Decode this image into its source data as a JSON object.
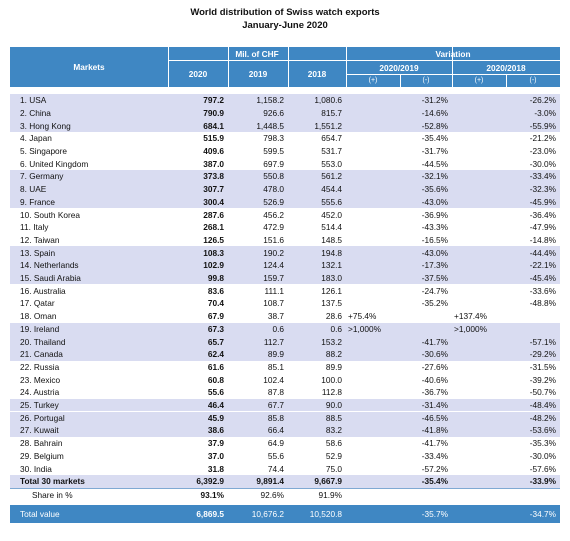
{
  "title_lines": [
    "World distribution of Swiss watch exports",
    "January-June 2020"
  ],
  "header": {
    "markets": "Markets",
    "group_values": "Mil. of CHF",
    "years": [
      "2020",
      "2019",
      "2018"
    ],
    "group_variation": "Variation",
    "periods": [
      "2020/2019",
      "2020/2018"
    ],
    "signs": [
      "(+)",
      "(-)",
      "(+)",
      "(-)"
    ]
  },
  "rows": [
    [
      "1. USA",
      "797.2",
      "1,158.2",
      "1,080.6",
      null,
      "-31.2%",
      null,
      "-26.2%"
    ],
    [
      "2. China",
      "790.9",
      "926.6",
      "815.7",
      null,
      "-14.6%",
      null,
      "-3.0%"
    ],
    [
      "3. Hong Kong",
      "684.1",
      "1,448.5",
      "1,551.2",
      null,
      "-52.8%",
      null,
      "-55.9%"
    ],
    [
      "4. Japan",
      "515.9",
      "798.3",
      "654.7",
      null,
      "-35.4%",
      null,
      "-21.2%"
    ],
    [
      "5. Singapore",
      "409.6",
      "599.5",
      "531.7",
      null,
      "-31.7%",
      null,
      "-23.0%"
    ],
    [
      "6. United Kingdom",
      "387.0",
      "697.9",
      "553.0",
      null,
      "-44.5%",
      null,
      "-30.0%"
    ],
    [
      "7. Germany",
      "373.8",
      "550.8",
      "561.2",
      null,
      "-32.1%",
      null,
      "-33.4%"
    ],
    [
      "8. UAE",
      "307.7",
      "478.0",
      "454.4",
      null,
      "-35.6%",
      null,
      "-32.3%"
    ],
    [
      "9. France",
      "300.4",
      "526.9",
      "555.6",
      null,
      "-43.0%",
      null,
      "-45.9%"
    ],
    [
      "10. South Korea",
      "287.6",
      "456.2",
      "452.0",
      null,
      "-36.9%",
      null,
      "-36.4%"
    ],
    [
      "11. Italy",
      "268.1",
      "472.9",
      "514.4",
      null,
      "-43.3%",
      null,
      "-47.9%"
    ],
    [
      "12. Taiwan",
      "126.5",
      "151.6",
      "148.5",
      null,
      "-16.5%",
      null,
      "-14.8%"
    ],
    [
      "13. Spain",
      "108.3",
      "190.2",
      "194.8",
      null,
      "-43.0%",
      null,
      "-44.4%"
    ],
    [
      "14. Netherlands",
      "102.9",
      "124.4",
      "132.1",
      null,
      "-17.3%",
      null,
      "-22.1%"
    ],
    [
      "15. Saudi Arabia",
      "99.8",
      "159.7",
      "183.0",
      null,
      "-37.5%",
      null,
      "-45.4%"
    ],
    [
      "16. Australia",
      "83.6",
      "111.1",
      "126.1",
      null,
      "-24.7%",
      null,
      "-33.6%"
    ],
    [
      "17. Qatar",
      "70.4",
      "108.7",
      "137.5",
      null,
      "-35.2%",
      null,
      "-48.8%"
    ],
    [
      "18. Oman",
      "67.9",
      "38.7",
      "28.6",
      "+75.4%",
      null,
      "+137.4%",
      null
    ],
    [
      "19. Ireland",
      "67.3",
      "0.6",
      "0.6",
      ">1,000%",
      null,
      ">1,000%",
      null
    ],
    [
      "20. Thailand",
      "65.7",
      "112.7",
      "153.2",
      null,
      "-41.7%",
      null,
      "-57.1%"
    ],
    [
      "21. Canada",
      "62.4",
      "89.9",
      "88.2",
      null,
      "-30.6%",
      null,
      "-29.2%"
    ],
    [
      "22. Russia",
      "61.6",
      "85.1",
      "89.9",
      null,
      "-27.6%",
      null,
      "-31.5%"
    ],
    [
      "23. Mexico",
      "60.8",
      "102.4",
      "100.0",
      null,
      "-40.6%",
      null,
      "-39.2%"
    ],
    [
      "24. Austria",
      "55.6",
      "87.8",
      "112.8",
      null,
      "-36.7%",
      null,
      "-50.7%"
    ],
    [
      "25. Turkey",
      "46.4",
      "67.7",
      "90.0",
      null,
      "-31.4%",
      null,
      "-48.4%"
    ],
    [
      "26. Portugal",
      "45.9",
      "85.8",
      "88.5",
      null,
      "-46.5%",
      null,
      "-48.2%"
    ],
    [
      "27. Kuwait",
      "38.6",
      "66.4",
      "83.2",
      null,
      "-41.8%",
      null,
      "-53.6%"
    ],
    [
      "28. Bahrain",
      "37.9",
      "64.9",
      "58.6",
      null,
      "-41.7%",
      null,
      "-35.3%"
    ],
    [
      "29. Belgium",
      "37.0",
      "55.6",
      "52.9",
      null,
      "-33.4%",
      null,
      "-30.0%"
    ],
    [
      "30. India",
      "31.8",
      "74.4",
      "75.0",
      null,
      "-57.2%",
      null,
      "-57.6%"
    ]
  ],
  "total": [
    "Total 30 markets",
    "6,392.9",
    "9,891.4",
    "9,667.9",
    null,
    "-35.4%",
    null,
    "-33.9%"
  ],
  "share": [
    "Share in %",
    "93.1%",
    "92.6%",
    "91.9%",
    null,
    null,
    null,
    null
  ],
  "total_value": [
    "Total value",
    "6,869.5",
    "10,676.2",
    "10,520.8",
    null,
    "-35.7%",
    null,
    "-34.7%"
  ]
}
